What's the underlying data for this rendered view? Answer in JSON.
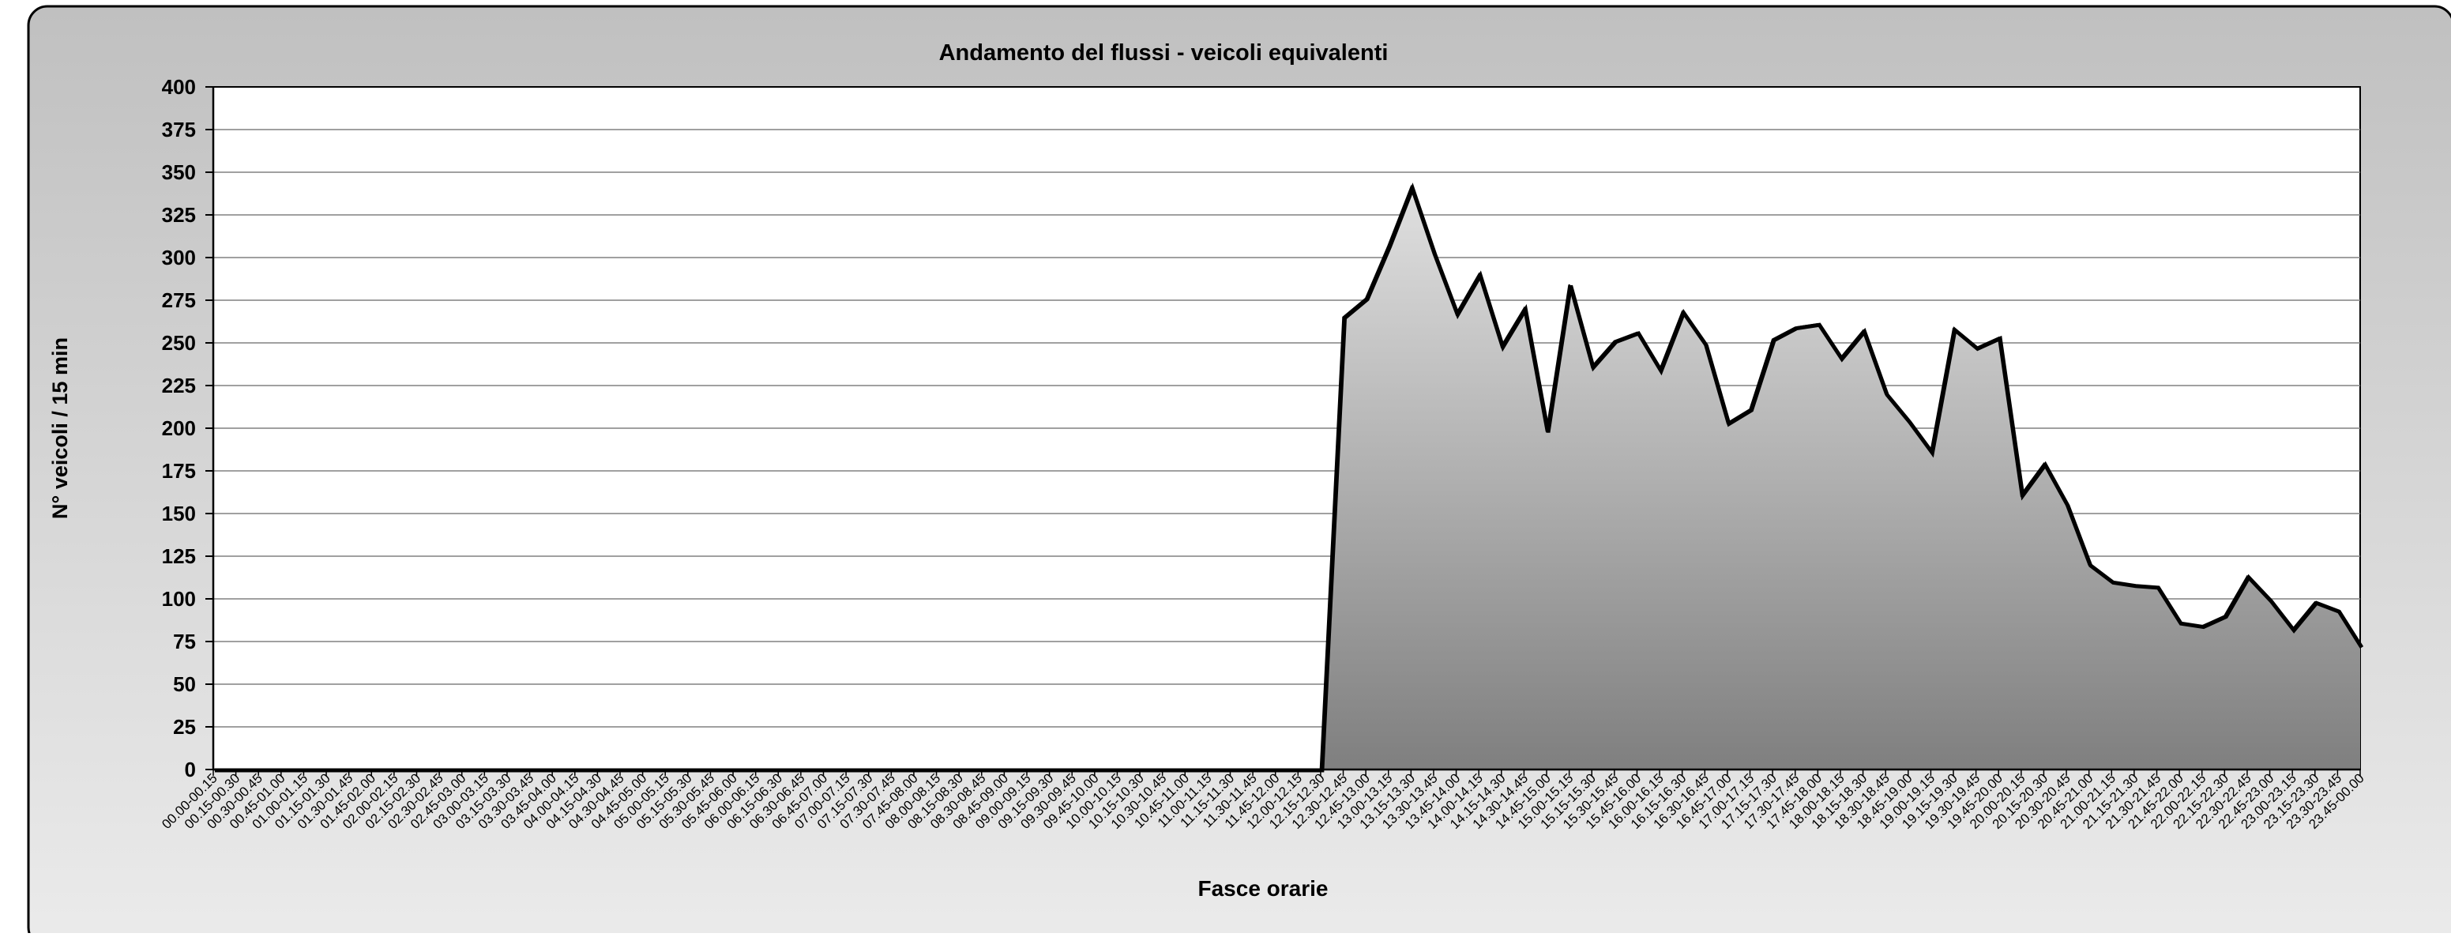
{
  "chart_data": {
    "type": "area",
    "title": "Andamento  del flussi - veicoli equivalenti",
    "xlabel": "Fasce orarie",
    "ylabel": "N° veicoli / 15 min",
    "ylim": [
      0,
      400
    ],
    "yticks": [
      0,
      25,
      50,
      75,
      100,
      125,
      150,
      175,
      200,
      225,
      250,
      275,
      300,
      325,
      350,
      375,
      400
    ],
    "grid": true,
    "legend": "none",
    "categories": [
      "00.00-00.15",
      "00.15-00.30",
      "00.30-00.45",
      "00.45-01.00",
      "01.00-01.15",
      "01.15-01.30",
      "01.30-01.45",
      "01.45-02.00",
      "02.00-02.15",
      "02.15-02.30",
      "02.30-02.45",
      "02.45-03.00",
      "03.00-03.15",
      "03.15-03.30",
      "03.30-03.45",
      "03.45-04.00",
      "04.00-04.15",
      "04.15-04.30",
      "04.30-04.45",
      "04.45-05.00",
      "05.00-05.15",
      "05.15-05.30",
      "05.30-05.45",
      "05.45-06.00",
      "06.00-06.15",
      "06.15-06.30",
      "06.30-06.45",
      "06.45-07.00",
      "07.00-07.15",
      "07.15-07.30",
      "07.30-07.45",
      "07.45-08.00",
      "08.00-08.15",
      "08.15-08.30",
      "08.30-08.45",
      "08.45-09.00",
      "09.00-09.15",
      "09.15-09.30",
      "09.30-09.45",
      "09.45-10.00",
      "10.00-10.15",
      "10.15-10.30",
      "10.30-10.45",
      "10.45-11.00",
      "11.00-11.15",
      "11.15-11.30",
      "11.30-11.45",
      "11.45-12.00",
      "12.00-12.15",
      "12.15-12.30",
      "12.30-12.45",
      "12.45-13.00",
      "13.00-13.15",
      "13.15-13.30",
      "13.30-13.45",
      "13.45-14.00",
      "14.00-14.15",
      "14.15-14.30",
      "14.30-14.45",
      "14.45-15.00",
      "15.00-15.15",
      "15.15-15.30",
      "15.30-15.45",
      "15.45-16.00",
      "16.00-16.15",
      "16.15-16.30",
      "16.30-16.45",
      "16.45-17.00",
      "17.00-17.15",
      "17.15-17.30",
      "17.30-17.45",
      "17.45-18.00",
      "18.00-18.15",
      "18.15-18.30",
      "18.30-18.45",
      "18.45-19.00",
      "19.00-19.15",
      "19.15-19.30",
      "19.30-19.45",
      "19.45-20.00",
      "20.00-20.15",
      "20.15-20.30",
      "20.30-20.45",
      "20.45-21.00",
      "21.00-21.15",
      "21.15-21.30",
      "21.30-21.45",
      "21.45-22.00",
      "22.00-22.15",
      "22.15-22.30",
      "22.30-22.45",
      "22.45-23.00",
      "23.00-23.15",
      "23.15-23.30",
      "23.30-23.45",
      "23.45-00.00"
    ],
    "series": [
      {
        "values": [
          0,
          0,
          0,
          0,
          0,
          0,
          0,
          0,
          0,
          0,
          0,
          0,
          0,
          0,
          0,
          0,
          0,
          0,
          0,
          0,
          0,
          0,
          0,
          0,
          0,
          0,
          0,
          0,
          0,
          0,
          0,
          0,
          0,
          0,
          0,
          0,
          0,
          0,
          0,
          0,
          0,
          0,
          0,
          0,
          0,
          0,
          0,
          0,
          0,
          0,
          265,
          276,
          307,
          341,
          302,
          267,
          290,
          248,
          270,
          198,
          284,
          236,
          251,
          256,
          234,
          268,
          249,
          203,
          211,
          252,
          259,
          261,
          241,
          257,
          220,
          204,
          186,
          258,
          247,
          253,
          161,
          179,
          155,
          120,
          110,
          108,
          107,
          86,
          84,
          90,
          113,
          99,
          82,
          98,
          93,
          72
        ]
      }
    ],
    "colors": {
      "frame_top": "#c0c0c0",
      "frame_bottom": "#ebebeb",
      "area_top": "#e0e0e0",
      "area_bottom": "#7f7f7f",
      "line": "#000000",
      "grid": "#808080"
    }
  }
}
